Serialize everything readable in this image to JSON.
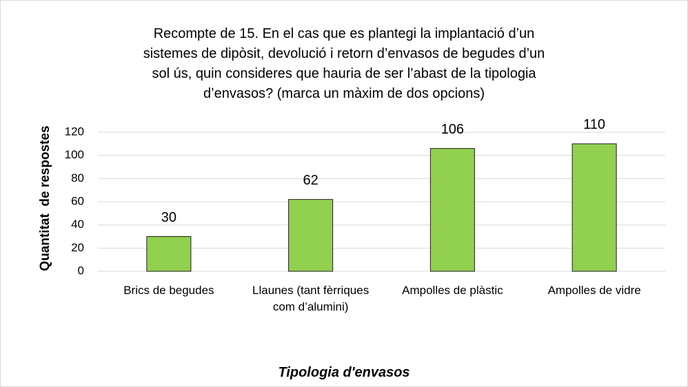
{
  "chart_data": {
    "type": "bar",
    "title": "Recompte de 15. En el cas que es plantegi la implantació d’un sistemes de dipòsit, devolució i retorn d’envasos de begudes d’un sol ús, quin consideres que hauria de ser l’abast de la tipologia d’envasos? (marca un màxim de dos opcions)",
    "categories": [
      "Brics de begudes",
      "Llaunes (tant fèrriques com d’alumini)",
      "Ampolles de plàstic",
      "Ampolles de vidre"
    ],
    "values": [
      30,
      62,
      106,
      110
    ],
    "color": "#92d050",
    "ylim": [
      0,
      120
    ],
    "yticks": [
      0,
      20,
      40,
      60,
      80,
      100,
      120
    ],
    "grid": true,
    "x_label": "Tipologia d'envasos",
    "y_label": "Quantitat  de respostes"
  }
}
